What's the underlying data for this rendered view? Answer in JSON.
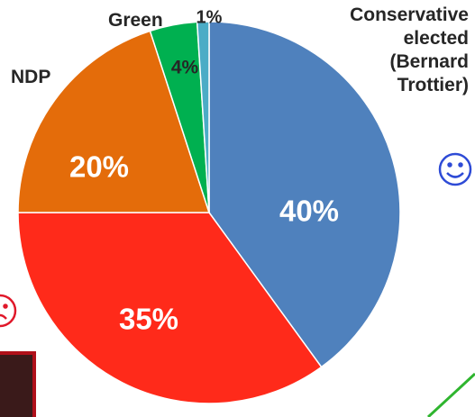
{
  "chart_data": {
    "type": "pie",
    "categories": [
      "Conservative elected (Bernard Trottier)",
      null,
      "NDP",
      "Green",
      null
    ],
    "values": [
      40,
      35,
      20,
      4,
      1
    ],
    "value_labels": [
      "40%",
      "35%",
      "20%",
      "4%",
      "1%"
    ],
    "colors": [
      "#4f81bd",
      "#ff2a1a",
      "#e46c0a",
      "#00b050",
      "#4bacc6"
    ]
  }
}
